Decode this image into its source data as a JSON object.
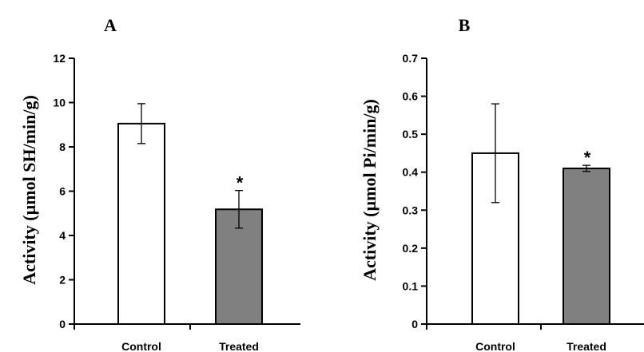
{
  "chart_data": [
    {
      "type": "bar",
      "panel_label": "A",
      "categories": [
        "Control",
        "Treated"
      ],
      "values": [
        9.05,
        5.18
      ],
      "errors": [
        0.9,
        0.85
      ],
      "significance": [
        "",
        "*"
      ],
      "bar_colors": [
        "#ffffff",
        "#808080"
      ],
      "ylabel": "Activity (µmol SH/min/g)",
      "xlabel": "",
      "ylim": [
        0,
        12
      ],
      "yticks": [
        0,
        2,
        4,
        6,
        8,
        10,
        12
      ],
      "ytick_labels": [
        "0",
        "2",
        "4",
        "6",
        "8",
        "10",
        "12"
      ],
      "grid": false
    },
    {
      "type": "bar",
      "panel_label": "B",
      "categories": [
        "Control",
        "Treated"
      ],
      "values": [
        0.45,
        0.41
      ],
      "errors": [
        0.13,
        0.008
      ],
      "significance": [
        "",
        "*"
      ],
      "bar_colors": [
        "#ffffff",
        "#808080"
      ],
      "ylabel": "Activity (µmol Pi/min/g)",
      "xlabel": "",
      "ylim": [
        0,
        0.7
      ],
      "yticks": [
        0,
        0.1,
        0.2,
        0.3,
        0.4,
        0.5,
        0.6,
        0.7
      ],
      "ytick_labels": [
        "0",
        "0.1",
        "0.2",
        "0.3",
        "0.4",
        "0.5",
        "0.6",
        "0.7"
      ],
      "grid": false
    }
  ]
}
